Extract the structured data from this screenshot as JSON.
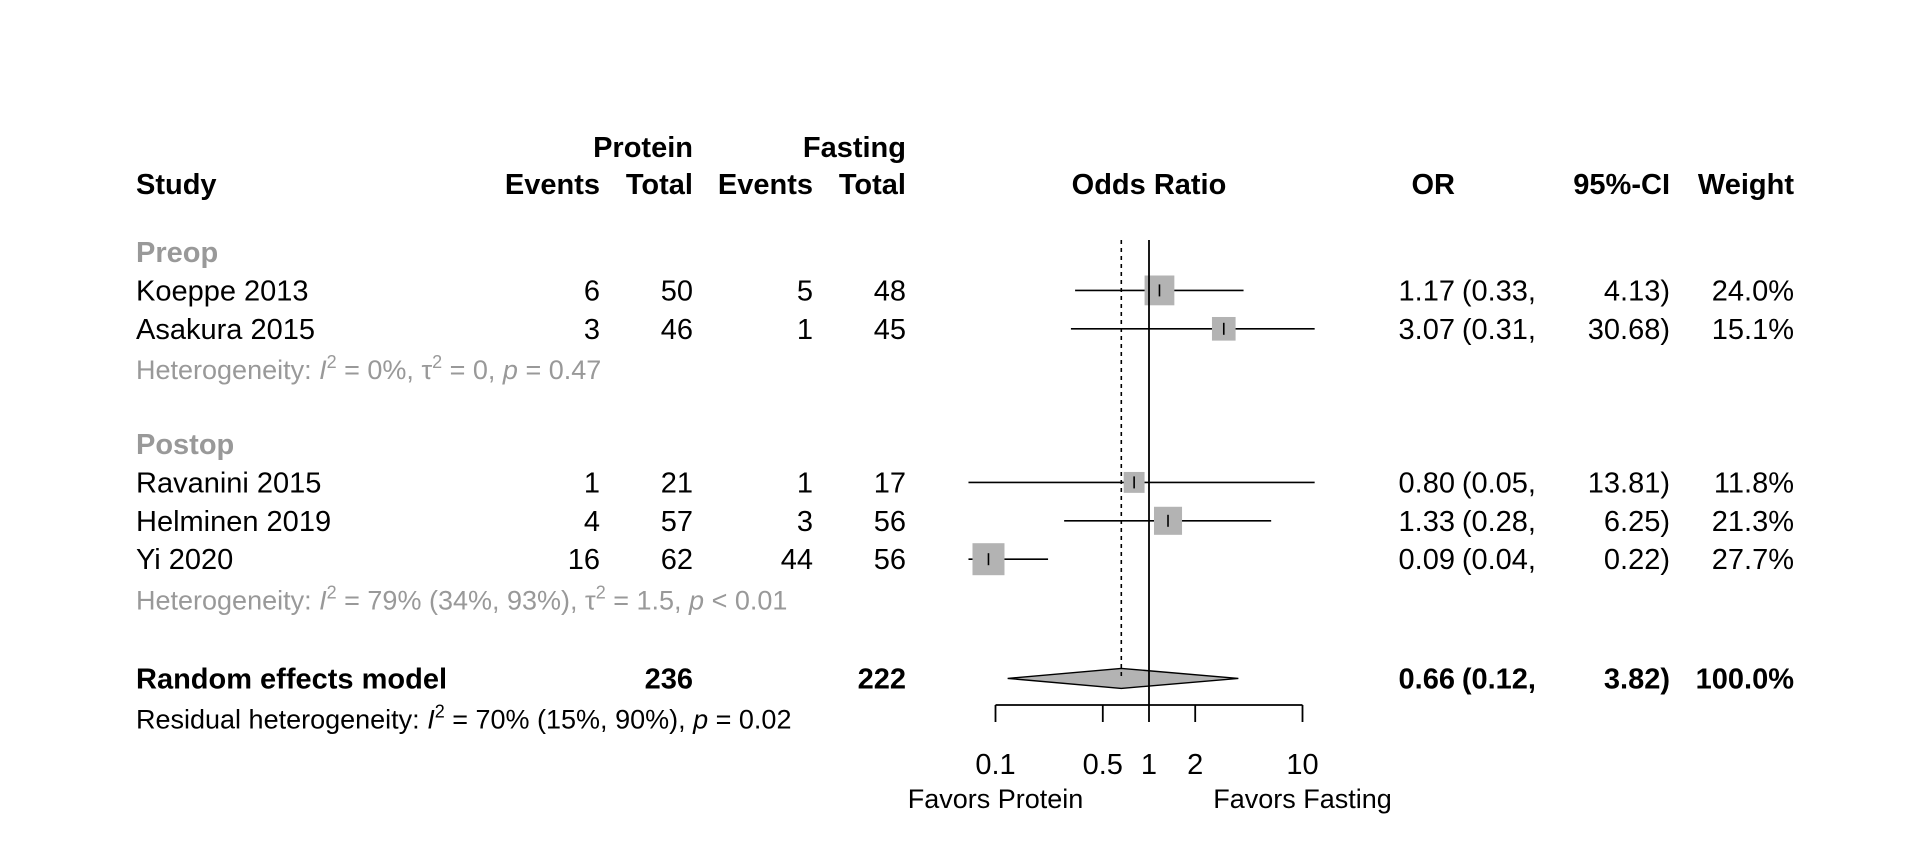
{
  "chart_data": {
    "type": "forest",
    "scale": "log",
    "headers": {
      "study": "Study",
      "group1": "Protein",
      "group2": "Fasting",
      "events": "Events",
      "total": "Total",
      "effect": "Odds Ratio",
      "or": "OR",
      "ci": "95%-CI",
      "weight": "Weight"
    },
    "groups": [
      {
        "name": "Preop",
        "studies": [
          {
            "study": "Koeppe 2013",
            "e1": "6",
            "n1": "50",
            "e2": "5",
            "n2": "48",
            "or": 1.17,
            "lo": 0.33,
            "hi": 4.13,
            "or_text": "1.17",
            "lo_text": "(0.33,",
            "hi_text": "4.13)",
            "weight": 24.0,
            "weight_text": "24.0%"
          },
          {
            "study": "Asakura 2015",
            "e1": "3",
            "n1": "46",
            "e2": "1",
            "n2": "45",
            "or": 3.07,
            "lo": 0.31,
            "hi": 30.68,
            "or_text": "3.07",
            "lo_text": "(0.31,",
            "hi_text": "30.68)",
            "weight": 15.1,
            "weight_text": "15.1%"
          }
        ],
        "heterogeneity": {
          "prefix": "Heterogeneity: ",
          "i2": " = 0%, ",
          "t2": " = 0, ",
          "p": " = 0.47"
        }
      },
      {
        "name": "Postop",
        "studies": [
          {
            "study": "Ravanini 2015",
            "e1": "1",
            "n1": "21",
            "e2": "1",
            "n2": "17",
            "or": 0.8,
            "lo": 0.05,
            "hi": 13.81,
            "or_text": "0.80",
            "lo_text": "(0.05,",
            "hi_text": "13.81)",
            "weight": 11.8,
            "weight_text": "11.8%"
          },
          {
            "study": "Helminen 2019",
            "e1": "4",
            "n1": "57",
            "e2": "3",
            "n2": "56",
            "or": 1.33,
            "lo": 0.28,
            "hi": 6.25,
            "or_text": "1.33",
            "lo_text": "(0.28,",
            "hi_text": "6.25)",
            "weight": 21.3,
            "weight_text": "21.3%"
          },
          {
            "study": "Yi 2020",
            "e1": "16",
            "n1": "62",
            "e2": "44",
            "n2": "56",
            "or": 0.09,
            "lo": 0.04,
            "hi": 0.22,
            "or_text": "0.09",
            "lo_text": "(0.04,",
            "hi_text": "0.22)",
            "weight": 27.7,
            "weight_text": "27.7%"
          }
        ],
        "heterogeneity": {
          "prefix": "Heterogeneity: ",
          "i2": " = 79% (34%, 93%), ",
          "t2": " = 1.5, ",
          "p": " < 0.01"
        }
      }
    ],
    "overall": {
      "label": "Random effects model",
      "n1": "236",
      "n2": "222",
      "or": 0.66,
      "lo": 0.12,
      "hi": 3.82,
      "or_text": "0.66",
      "lo_text": "(0.12,",
      "hi_text": "3.82)",
      "weight_text": "100.0%"
    },
    "residual": {
      "prefix": "Residual heterogeneity: ",
      "i2": " = 70% (15%, 90%), ",
      "p": " = 0.02"
    },
    "axis": {
      "ticks": [
        0.1,
        0.5,
        1,
        2,
        10
      ],
      "tick_labels": [
        "0.1",
        "0.5",
        "1",
        "2",
        "10"
      ],
      "null_value": 1,
      "reference_value": 0.66,
      "left_label": "Favors Protein",
      "right_label": "Favors Fasting",
      "clip_max": 12
    },
    "colors": {
      "square": "#b3b3b3",
      "diamond": "#b3b3b3",
      "line": "#000000",
      "group_text": "#999999"
    }
  }
}
